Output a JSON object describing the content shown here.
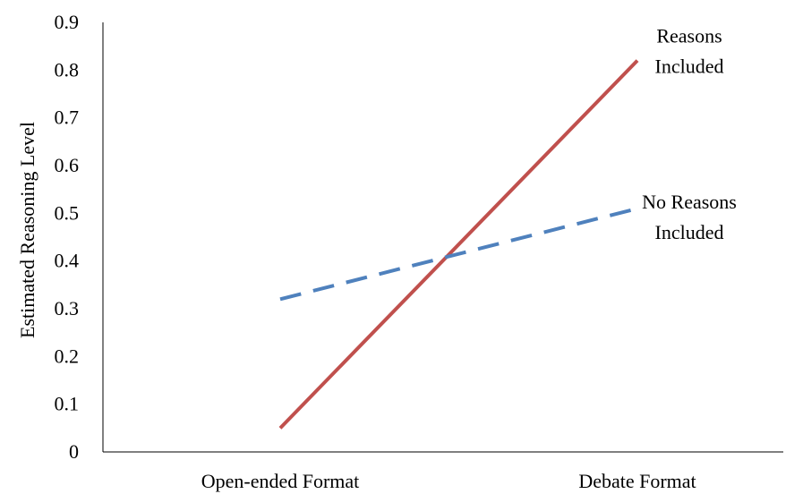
{
  "chart_data": {
    "type": "line",
    "categories": [
      "Open-ended Format",
      "Debate Format"
    ],
    "ylabel": "Estimated Reasoning Level",
    "xlabel": "",
    "ylim": [
      0,
      0.9
    ],
    "yticks": [
      "0",
      "0.1",
      "0.2",
      "0.3",
      "0.4",
      "0.5",
      "0.6",
      "0.7",
      "0.8",
      "0.9"
    ],
    "grid": false,
    "legend": "inline labels at line ends",
    "series": [
      {
        "name": "Reasons Included",
        "label_lines": [
          "Reasons",
          "Included"
        ],
        "values": [
          0.05,
          0.82
        ],
        "color": "#C0504D",
        "style": "solid"
      },
      {
        "name": "No Reasons Included",
        "label_lines": [
          "No Reasons",
          "Included"
        ],
        "values": [
          0.32,
          0.51
        ],
        "color": "#4F81BD",
        "style": "dashed"
      }
    ]
  }
}
